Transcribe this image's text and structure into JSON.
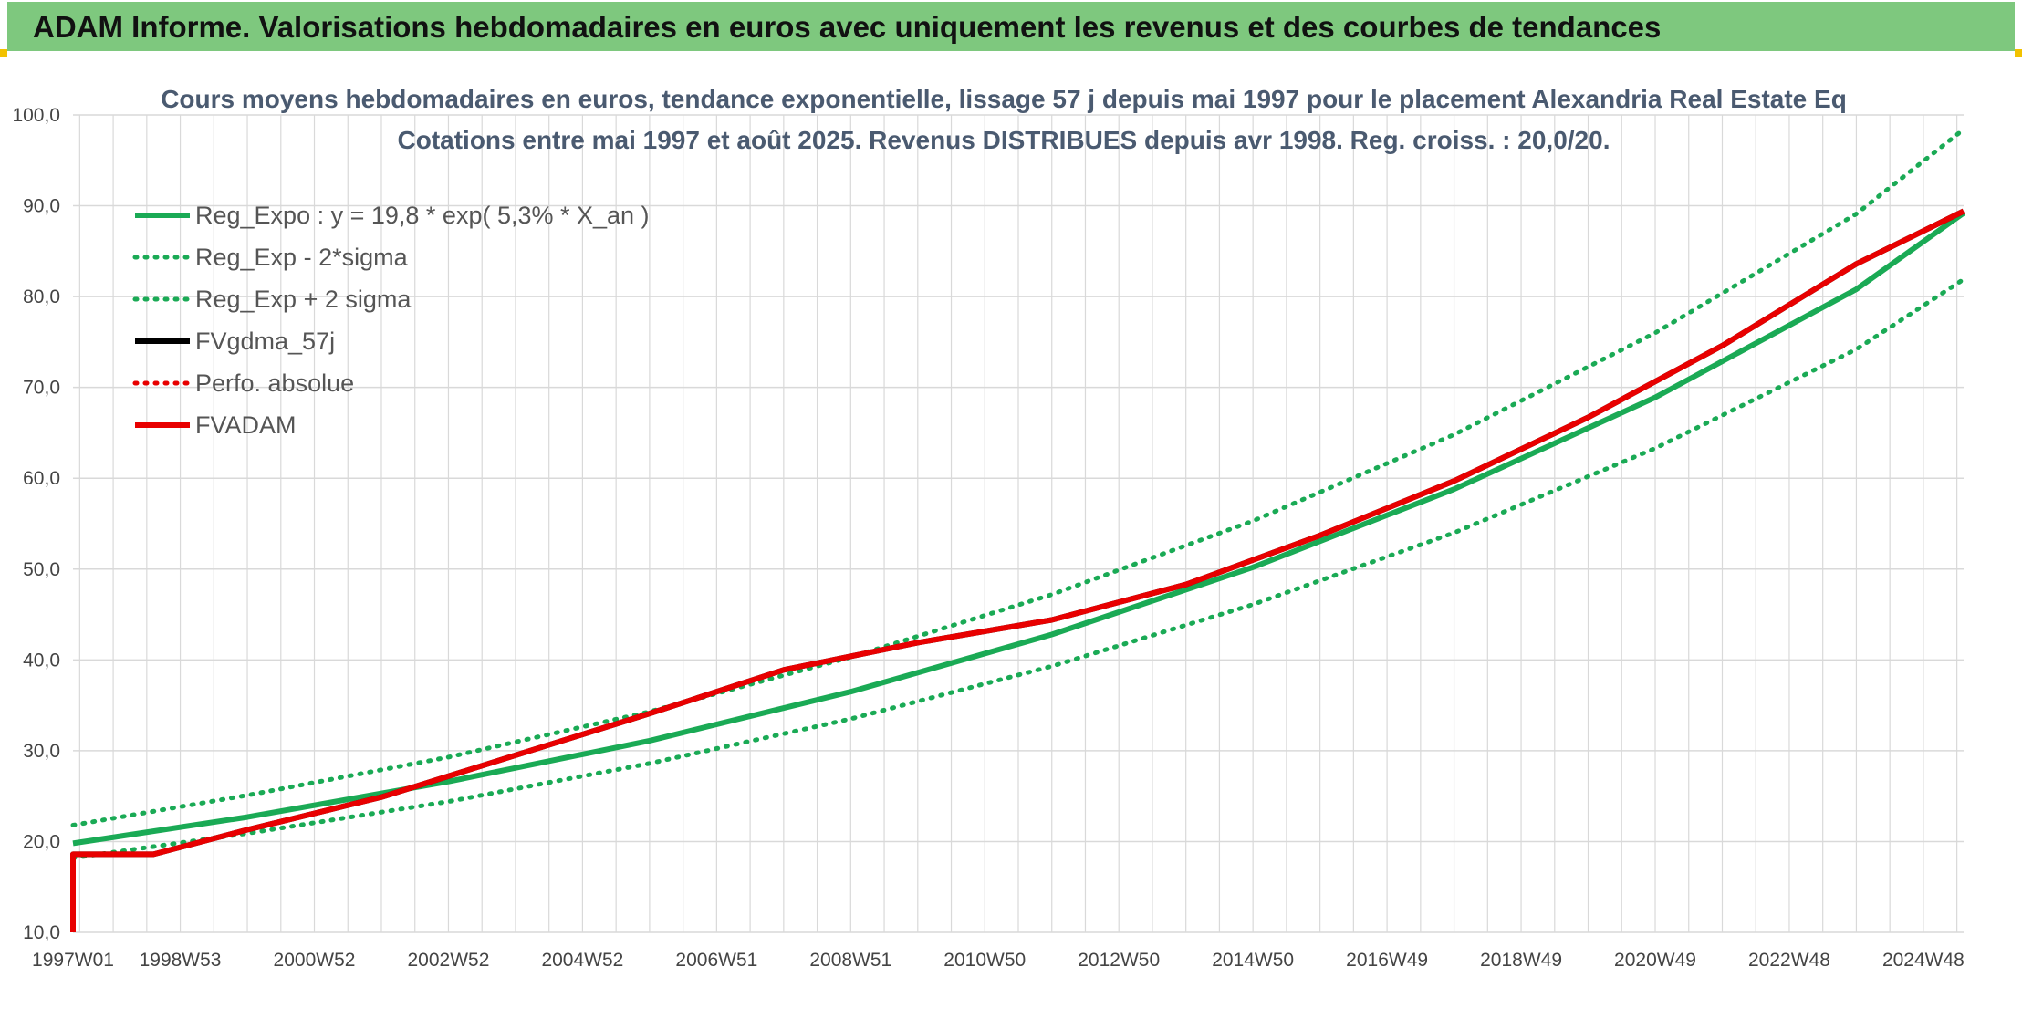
{
  "banner": {
    "title": "ADAM Informe. Valorisations hebdomadaires en euros avec uniquement les revenus et des courbes de tendances"
  },
  "colors": {
    "banner_bg": "#7ec87e",
    "corner_marker": "#f2c200",
    "trend_green": "#1aaa55",
    "adam_red": "#e80000",
    "black": "#000000",
    "grid": "#d9d9d9"
  },
  "chart_data": {
    "type": "line",
    "title": "Cours moyens hebdomadaires en euros, tendance exponentielle, lissage 57 j depuis mai 1997 pour le placement Alexandria Real Estate Eq",
    "subtitle": "Cotations entre mai 1997 et août 2025. Revenus DISTRIBUES depuis avr 1998. Reg. croiss. : 20,0/20.",
    "xlabel": "",
    "ylabel": "",
    "ylim": [
      10,
      100
    ],
    "yticks": [
      "10,0",
      "20,0",
      "30,0",
      "40,0",
      "50,0",
      "60,0",
      "70,0",
      "80,0",
      "90,0",
      "100,0"
    ],
    "xlim": [
      1997.4,
      2025.6
    ],
    "xticks": [
      {
        "label": "1997W01",
        "x": 1997.0
      },
      {
        "label": "1998W53",
        "x": 1999.0
      },
      {
        "label": "2000W52",
        "x": 2001.0
      },
      {
        "label": "2002W52",
        "x": 2003.0
      },
      {
        "label": "2004W52",
        "x": 2005.0
      },
      {
        "label": "2006W51",
        "x": 2007.0
      },
      {
        "label": "2008W51",
        "x": 2009.0
      },
      {
        "label": "2010W50",
        "x": 2011.0
      },
      {
        "label": "2012W50",
        "x": 2013.0
      },
      {
        "label": "2014W50",
        "x": 2015.0
      },
      {
        "label": "2016W49",
        "x": 2017.0
      },
      {
        "label": "2018W49",
        "x": 2019.0
      },
      {
        "label": "2020W49",
        "x": 2021.0
      },
      {
        "label": "2022W48",
        "x": 2023.0
      },
      {
        "label": "2024W48",
        "x": 2025.0
      }
    ],
    "grid": true,
    "legend_position": "top-left",
    "series": [
      {
        "name": "Reg_Expo : y = 19,8 * exp( 5,3% *  X_an )",
        "style": "solid",
        "color": "#1aaa55",
        "x": [
          1997.4,
          2000,
          2003,
          2006,
          2009,
          2012,
          2015,
          2018,
          2021,
          2024,
          2025.6
        ],
        "y": [
          19.8,
          22.7,
          26.6,
          31.1,
          36.5,
          42.8,
          50.2,
          58.8,
          68.9,
          80.8,
          89.2
        ]
      },
      {
        "name": "Reg_Exp - 2*sigma",
        "style": "dotted",
        "color": "#1aaa55",
        "x": [
          1997.4,
          2000,
          2003,
          2006,
          2009,
          2012,
          2015,
          2018,
          2021,
          2024,
          2025.6
        ],
        "y": [
          18.2,
          20.9,
          24.4,
          28.6,
          33.5,
          39.3,
          46.1,
          54.0,
          63.3,
          74.2,
          81.9
        ]
      },
      {
        "name": "Reg_Exp + 2 sigma",
        "style": "dotted",
        "color": "#1aaa55",
        "x": [
          1997.4,
          2000,
          2003,
          2006,
          2009,
          2012,
          2015,
          2018,
          2021,
          2024,
          2025.6
        ],
        "y": [
          21.8,
          25.1,
          29.3,
          34.3,
          40.3,
          47.2,
          55.3,
          64.8,
          76.0,
          89.1,
          98.4
        ]
      },
      {
        "name": "FVgdma_57j",
        "style": "solid",
        "color": "#000000",
        "x": [
          1997.4,
          1997.4,
          1997.5,
          1998.6,
          2000,
          2002,
          2004,
          2006,
          2008,
          2010,
          2012,
          2014,
          2016,
          2018,
          2020,
          2022,
          2024,
          2025.6
        ],
        "y": [
          10.0,
          18.6,
          18.6,
          18.6,
          21.3,
          24.9,
          29.5,
          34.1,
          38.9,
          41.9,
          44.4,
          48.3,
          53.7,
          59.7,
          66.7,
          74.6,
          83.6,
          89.4
        ]
      },
      {
        "name": "Perfo. absolue",
        "style": "dotted",
        "color": "#e80000",
        "x": [
          1997.4,
          1997.5,
          1998.6,
          2000,
          2002,
          2004,
          2006,
          2008,
          2010,
          2012,
          2014,
          2016,
          2018,
          2020,
          2022,
          2024,
          2025.6
        ],
        "y": [
          18.6,
          18.6,
          18.6,
          21.3,
          24.9,
          29.5,
          34.1,
          38.9,
          41.9,
          44.4,
          48.3,
          53.7,
          59.7,
          66.7,
          74.6,
          83.6,
          89.4
        ]
      },
      {
        "name": "FVADAM",
        "style": "solid",
        "color": "#e80000",
        "x": [
          1997.4,
          1997.4,
          1997.5,
          1998.6,
          2000,
          2002,
          2004,
          2006,
          2008,
          2010,
          2012,
          2014,
          2016,
          2018,
          2020,
          2022,
          2024,
          2025.6
        ],
        "y": [
          10.0,
          18.6,
          18.6,
          18.6,
          21.3,
          24.9,
          29.5,
          34.1,
          38.9,
          41.9,
          44.4,
          48.3,
          53.7,
          59.7,
          66.7,
          74.6,
          83.6,
          89.4
        ]
      }
    ]
  }
}
